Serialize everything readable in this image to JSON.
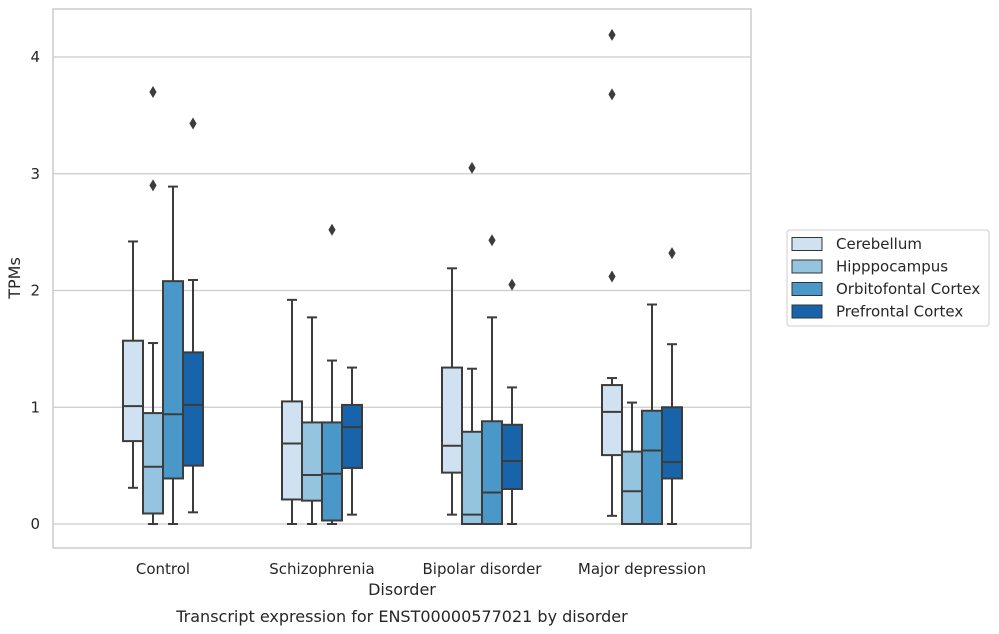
{
  "chart_data": {
    "type": "box",
    "caption": "Transcript expression for ENST00000577021 by disorder",
    "xlabel": "Disorder",
    "ylabel": "TPMs",
    "ylim": [
      -0.2,
      4.4
    ],
    "yticks": [
      0,
      1,
      2,
      3,
      4
    ],
    "grid": "horizontal",
    "legend_position": "right",
    "categories": [
      "Control",
      "Schizophrenia",
      "Bipolar disorder",
      "Major depression"
    ],
    "series": [
      {
        "name": "Cerebellum",
        "color": "#d0e1f2",
        "boxes": [
          {
            "whislo": 0.31,
            "q1": 0.71,
            "med": 1.01,
            "q3": 1.57,
            "whishi": 2.42,
            "fliers": []
          },
          {
            "whislo": 0.0,
            "q1": 0.21,
            "med": 0.69,
            "q3": 1.05,
            "whishi": 1.92,
            "fliers": []
          },
          {
            "whislo": 0.08,
            "q1": 0.44,
            "med": 0.67,
            "q3": 1.34,
            "whishi": 2.19,
            "fliers": []
          },
          {
            "whislo": 0.07,
            "q1": 0.59,
            "med": 0.96,
            "q3": 1.19,
            "whishi": 1.25,
            "fliers": [
              2.12,
              3.68,
              4.19
            ]
          }
        ]
      },
      {
        "name": "Hipppocampus",
        "color": "#94c4df",
        "boxes": [
          {
            "whislo": 0.0,
            "q1": 0.09,
            "med": 0.49,
            "q3": 0.95,
            "whishi": 1.55,
            "fliers": [
              2.9,
              3.7
            ]
          },
          {
            "whislo": 0.0,
            "q1": 0.2,
            "med": 0.42,
            "q3": 0.87,
            "whishi": 1.77,
            "fliers": []
          },
          {
            "whislo": 0.0,
            "q1": 0.0,
            "med": 0.08,
            "q3": 0.79,
            "whishi": 1.33,
            "fliers": [
              3.05
            ]
          },
          {
            "whislo": 0.0,
            "q1": 0.0,
            "med": 0.28,
            "q3": 0.62,
            "whishi": 1.04,
            "fliers": []
          }
        ]
      },
      {
        "name": "Orbitofontal Cortex",
        "color": "#4a98c9",
        "boxes": [
          {
            "whislo": 0.0,
            "q1": 0.39,
            "med": 0.94,
            "q3": 2.08,
            "whishi": 2.89,
            "fliers": []
          },
          {
            "whislo": 0.0,
            "q1": 0.03,
            "med": 0.43,
            "q3": 0.87,
            "whishi": 1.4,
            "fliers": [
              2.52
            ]
          },
          {
            "whislo": 0.0,
            "q1": 0.0,
            "med": 0.27,
            "q3": 0.88,
            "whishi": 1.77,
            "fliers": [
              2.43
            ]
          },
          {
            "whislo": 0.0,
            "q1": 0.0,
            "med": 0.63,
            "q3": 0.97,
            "whishi": 1.88,
            "fliers": []
          }
        ]
      },
      {
        "name": "Prefrontal Cortex",
        "color": "#1764ab",
        "boxes": [
          {
            "whislo": 0.1,
            "q1": 0.5,
            "med": 1.02,
            "q3": 1.47,
            "whishi": 2.09,
            "fliers": [
              3.43
            ]
          },
          {
            "whislo": 0.08,
            "q1": 0.48,
            "med": 0.83,
            "q3": 1.02,
            "whishi": 1.34,
            "fliers": []
          },
          {
            "whislo": 0.0,
            "q1": 0.3,
            "med": 0.54,
            "q3": 0.85,
            "whishi": 1.17,
            "fliers": [
              2.05
            ]
          },
          {
            "whislo": 0.0,
            "q1": 0.39,
            "med": 0.53,
            "q3": 1.0,
            "whishi": 1.54,
            "fliers": [
              2.32
            ]
          }
        ]
      }
    ]
  },
  "style": {
    "line_color": "#3c3c3c",
    "grid_color": "#cccccc",
    "frame_color": "#cccccc",
    "background": "#ffffff"
  }
}
